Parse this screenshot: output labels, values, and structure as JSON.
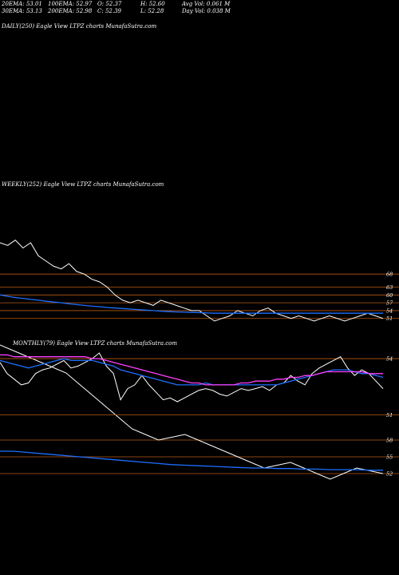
{
  "header": {
    "row1": [
      "20EMA: 53.01",
      "100EMA: 52.97",
      "O: 52.37",
      "H: 52.60",
      "Avg Vol: 0.061 M"
    ],
    "row2": [
      "30EMA: 53.13",
      "200EMA: 52.98",
      "C: 52.39",
      "L: 52.28",
      "Day Vol: 0.038  M"
    ]
  },
  "colors": {
    "background": "#000000",
    "price": "#ffffff",
    "level": "#b85a14",
    "ema_short": "#1e6fff",
    "ema_long": "#ff3fff",
    "ema_mid": "#c8c8c8"
  },
  "chart_data": [
    {
      "type": "line",
      "label": "DAILY(250) Eagle  View  LTPZ charts MunafaSutra.com",
      "levels": [],
      "series": []
    },
    {
      "type": "line",
      "label": "WEEKLY(252) Eagle  View  LTPZ charts MunafaSutra.com",
      "levels": [
        68,
        63,
        60,
        57,
        54,
        51
      ],
      "series": [
        {
          "values": [
            80,
            79,
            81,
            78,
            80,
            75,
            73,
            71,
            70,
            72,
            69,
            68,
            66,
            65,
            63,
            60,
            58,
            57,
            58,
            57,
            56,
            58,
            57,
            56,
            55,
            54,
            54,
            52,
            50,
            51,
            52,
            54,
            53,
            52,
            54,
            55,
            53,
            52,
            51,
            52,
            51,
            50,
            51,
            52,
            51,
            50,
            51,
            52,
            53,
            52,
            51
          ]
        },
        {
          "values": [
            60,
            59.5,
            59,
            58.7,
            58.3,
            58,
            57.6,
            57.3,
            57,
            56.6,
            56.3,
            56,
            55.7,
            55.5,
            55.2,
            55,
            54.8,
            54.6,
            54.4,
            54.2,
            54,
            53.8,
            53.6,
            53.5,
            53.4,
            53.3,
            53.2,
            53.1,
            53,
            53,
            53,
            53,
            53,
            53,
            53,
            53,
            53,
            53,
            53,
            53,
            53,
            53,
            53,
            53,
            53,
            53,
            53,
            53,
            53,
            53,
            53
          ]
        }
      ]
    },
    {
      "type": "line",
      "label": "MONTHLY(79) Eagle  View  LTPZ charts MunafaSutra.com",
      "levels": [
        58,
        55,
        52
      ],
      "series": [
        {
          "values": [
            75,
            74,
            73,
            72,
            71,
            70,
            68,
            66,
            64,
            62,
            60,
            59,
            58,
            58.5,
            59,
            58,
            57,
            56,
            55,
            54,
            53,
            53.5,
            54,
            53,
            52,
            51,
            52,
            53,
            52.5,
            52
          ]
        },
        {
          "values": [
            56,
            56,
            55.8,
            55.6,
            55.4,
            55.2,
            55,
            54.8,
            54.6,
            54.4,
            54.2,
            54,
            53.8,
            53.6,
            53.5,
            53.4,
            53.3,
            53.2,
            53.1,
            53,
            53,
            52.9,
            52.9,
            52.8,
            52.8,
            52.7,
            52.7,
            52.7,
            52.6,
            52.6
          ]
        }
      ]
    },
    {
      "type": "line",
      "label": "DAILY(250) Eagle  View  LTPZ charts MunafaSutra.com",
      "levels": [
        54,
        51
      ],
      "series": [
        {
          "values": [
            53.8,
            53.2,
            52.9,
            52.6,
            52.7,
            53.2,
            53.4,
            53.5,
            53.7,
            53.9,
            53.5,
            53.6,
            53.8,
            54,
            54.3,
            53.6,
            53.2,
            51.8,
            52.4,
            52.6,
            53.1,
            52.6,
            52.2,
            51.8,
            51.9,
            51.7,
            51.9,
            52.1,
            52.3,
            52.4,
            52.3,
            52.1,
            52,
            52.2,
            52.4,
            52.3,
            52.4,
            52.5,
            52.3,
            52.6,
            52.7,
            53.1,
            52.8,
            52.6,
            53.2,
            53.5,
            53.7,
            53.9,
            54.1,
            53.5,
            53.1,
            53.4,
            53.2,
            52.8,
            52.4
          ]
        },
        {
          "values": [
            53.9,
            53.8,
            53.7,
            53.6,
            53.5,
            53.6,
            53.7,
            53.8,
            53.9,
            54,
            53.9,
            53.9,
            53.9,
            53.9,
            53.8,
            53.7,
            53.6,
            53.4,
            53.3,
            53.2,
            53.1,
            53,
            52.9,
            52.8,
            52.7,
            52.6,
            52.6,
            52.6,
            52.6,
            52.7,
            52.6,
            52.6,
            52.6,
            52.6,
            52.6,
            52.6,
            52.6,
            52.6,
            52.6,
            52.6,
            52.7,
            52.8,
            52.9,
            53,
            53.1,
            53.2,
            53.3,
            53.4,
            53.4,
            53.4,
            53.3,
            53.2,
            53.2,
            53.1,
            53
          ]
        },
        {
          "values": [
            54.2,
            54.2,
            54.1,
            54.1,
            54.1,
            54.1,
            54.1,
            54.1,
            54.1,
            54.1,
            54.1,
            54.1,
            54.1,
            54,
            54,
            53.9,
            53.8,
            53.7,
            53.6,
            53.5,
            53.4,
            53.3,
            53.2,
            53.1,
            53,
            52.9,
            52.8,
            52.7,
            52.7,
            52.6,
            52.6,
            52.6,
            52.6,
            52.6,
            52.7,
            52.7,
            52.8,
            52.8,
            52.8,
            52.9,
            52.9,
            53,
            53,
            53.1,
            53.1,
            53.2,
            53.3,
            53.3,
            53.3,
            53.3,
            53.3,
            53.3,
            53.2,
            53.2,
            53.2
          ]
        }
      ]
    }
  ]
}
